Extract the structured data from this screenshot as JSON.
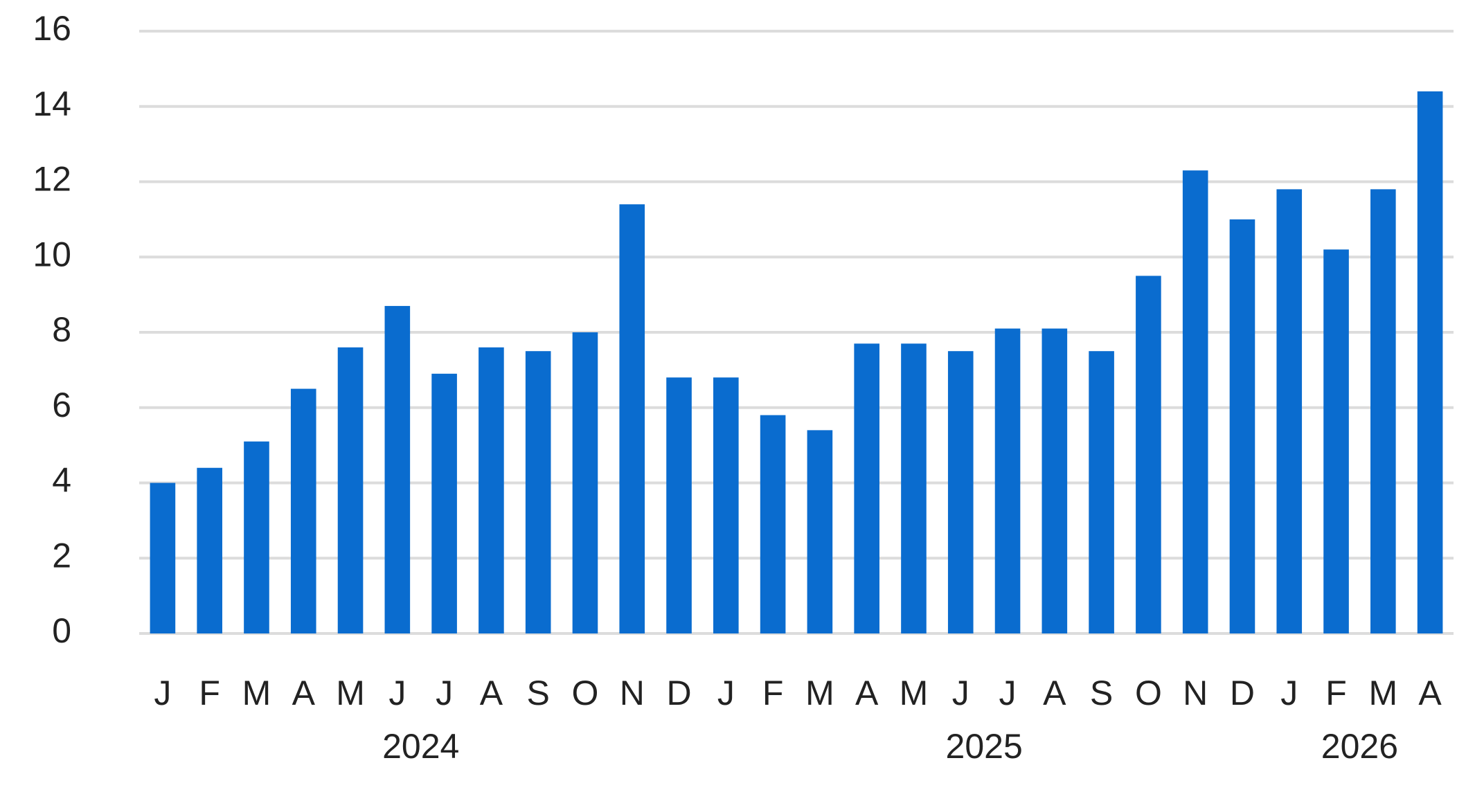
{
  "chart_data": {
    "type": "bar",
    "color": "#0a6ccf",
    "grid": true,
    "ylim": [
      0,
      16
    ],
    "yticks": [
      0,
      2,
      4,
      6,
      8,
      10,
      12,
      14,
      16
    ],
    "groups": [
      {
        "label": "2024",
        "categories": [
          "J",
          "F",
          "M",
          "A",
          "M",
          "J",
          "J",
          "A",
          "S",
          "O",
          "N",
          "D"
        ]
      },
      {
        "label": "2025",
        "categories": [
          "J",
          "F",
          "M",
          "A",
          "M",
          "J",
          "J",
          "A",
          "S",
          "O",
          "N",
          "D"
        ]
      },
      {
        "label": "2026",
        "categories": [
          "J",
          "F",
          "M",
          "A"
        ]
      }
    ],
    "values": [
      4.0,
      4.4,
      5.1,
      6.5,
      7.6,
      8.7,
      6.9,
      7.6,
      7.5,
      8.0,
      11.4,
      6.8,
      6.8,
      5.8,
      5.4,
      7.7,
      7.7,
      7.5,
      8.1,
      8.1,
      7.5,
      9.5,
      12.3,
      11.0,
      11.8,
      10.2,
      11.8,
      14.4
    ]
  }
}
